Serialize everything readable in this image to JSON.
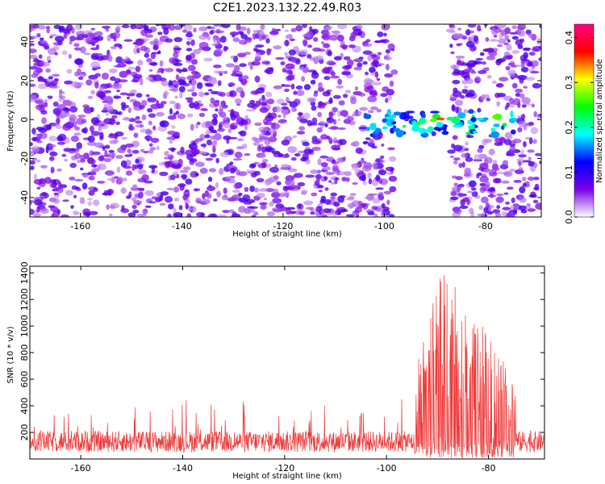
{
  "title": "C2E1.2023.132.22.49.R03",
  "colors": {
    "line": "#ee3a3a",
    "background": "#ffffff",
    "colormap": [
      "#ffffff",
      "#7a00e6",
      "#0000ff",
      "#00ffff",
      "#00ff00",
      "#ffff00",
      "#ff0000",
      "#ff0080"
    ]
  },
  "chart_data": [
    {
      "type": "heatmap",
      "xlabel": "Height of straight line (km)",
      "ylabel": "Frequency (Hz)",
      "xlim": [
        -170,
        -69
      ],
      "ylim": [
        -50,
        49
      ],
      "xticks": [
        -160,
        -140,
        -120,
        -100,
        -80
      ],
      "yticks": [
        -40,
        -20,
        0,
        20,
        40
      ],
      "colorbar": {
        "label": "Normalized spectral amplitude",
        "range": [
          0.0,
          0.43
        ],
        "ticks": [
          0.0,
          0.1,
          0.2,
          0.3,
          0.4
        ]
      },
      "background_level": 0.06,
      "quiet_band_km": [
        -98,
        -87
      ],
      "signal_band": {
        "x_range": [
          -104,
          -74
        ],
        "frequency_center_hz": -2,
        "peaks": [
          {
            "x": -92,
            "y": -3,
            "value": 0.4
          },
          {
            "x": -89,
            "y": 0,
            "value": 0.38
          },
          {
            "x": -96,
            "y": -4,
            "value": 0.25
          },
          {
            "x": -78,
            "y": 1,
            "value": 0.3
          }
        ]
      }
    },
    {
      "type": "line",
      "xlabel": "Height of straight line (km)",
      "ylabel": "SNR (10 * v/v)",
      "xlim": [
        -170,
        -69
      ],
      "ylim": [
        0,
        1450
      ],
      "xticks": [
        -160,
        -140,
        -120,
        -100,
        -80
      ],
      "yticks": [
        200,
        400,
        600,
        800,
        1000,
        1200,
        1400
      ],
      "baseline_mean": 130,
      "baseline_spread": 100,
      "key_points": [
        {
          "x": -170,
          "y": 330
        },
        {
          "x": -148,
          "y": 380
        },
        {
          "x": -125,
          "y": 390
        },
        {
          "x": -103,
          "y": 430
        },
        {
          "x": -96,
          "y": 530
        },
        {
          "x": -94,
          "y": 650
        },
        {
          "x": -92.5,
          "y": 1400
        },
        {
          "x": -91.5,
          "y": 1100
        },
        {
          "x": -89,
          "y": 1450
        },
        {
          "x": -88.5,
          "y": 1450
        },
        {
          "x": -76,
          "y": 680
        },
        {
          "x": -70,
          "y": 330
        }
      ]
    }
  ]
}
